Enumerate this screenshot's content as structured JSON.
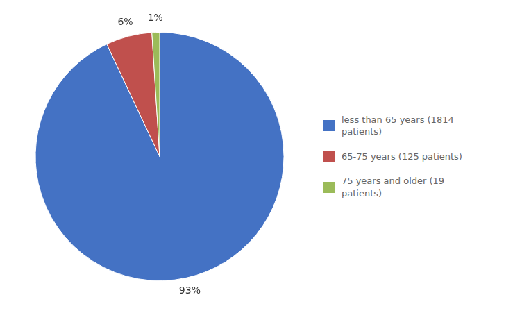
{
  "chart_data": {
    "type": "pie",
    "categories": [
      "less than 65 years (1814\npatients)",
      "65-75 years (125 patients)",
      "75 years and older (19\npatients)"
    ],
    "values": [
      93,
      6,
      1
    ],
    "value_labels": [
      "93%",
      "6%",
      "1%"
    ],
    "data_labels": true,
    "colors": [
      "#4472C4",
      "#C0504D",
      "#9BBB59"
    ],
    "legend": "right"
  }
}
